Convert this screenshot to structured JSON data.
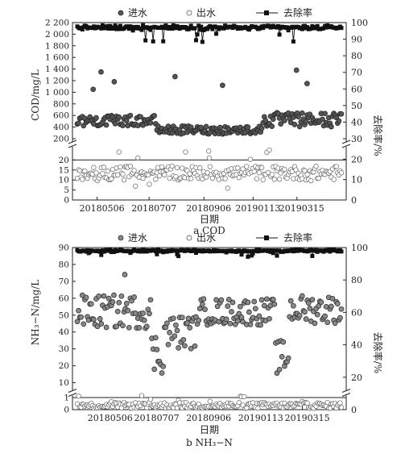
{
  "chart_data": [
    {
      "type": "scatter",
      "caption": "a COD",
      "xlabel": "日期",
      "ylabel_left": "COD/mg/L",
      "ylabel_right": "去除率/%",
      "x_ticks": [
        "20180506",
        "20180707",
        "20180906",
        "20190113",
        "20190315"
      ],
      "y_left_ticks_upper": [
        "200",
        "400",
        "600",
        "800",
        "1 000",
        "1 200",
        "1 400",
        "1 600",
        "1 800",
        "2 000",
        "2 200"
      ],
      "y_left_ticks_lower": [
        "0",
        "5",
        "10",
        "15",
        "20"
      ],
      "y_right_ticks_upper": [
        "40",
        "50",
        "60",
        "70",
        "80",
        "90",
        "100"
      ],
      "y_right_ticks_lower": [
        "0",
        "10",
        "20",
        "30"
      ],
      "ylim_left_upper": [
        200,
        2200
      ],
      "ylim_left_lower": [
        0,
        25
      ],
      "ylim_right_upper": [
        30,
        100
      ],
      "ylim_right_lower": [
        0,
        30
      ],
      "axis_break": true,
      "reference_line": 20,
      "legend_position": "top",
      "series": [
        {
          "name": "进水",
          "marker": "filled-circle",
          "axis": "left",
          "color": "#555555",
          "value_range": [
            200,
            1400
          ],
          "typical": [
            300,
            600
          ],
          "segments": [
            {
              "phase_start": 0.0,
              "phase_end": 0.3,
              "values": [
                420,
                600
              ]
            },
            {
              "phase_start": 0.3,
              "phase_end": 0.7,
              "values": [
                280,
                420
              ]
            },
            {
              "phase_start": 0.7,
              "phase_end": 1.0,
              "values": [
                400,
                650
              ]
            }
          ],
          "outliers": [
            {
              "phase": 0.06,
              "value": 1050
            },
            {
              "phase": 0.09,
              "value": 1350
            },
            {
              "phase": 0.14,
              "value": 1180
            },
            {
              "phase": 0.37,
              "value": 1270
            },
            {
              "phase": 0.55,
              "value": 1120
            },
            {
              "phase": 0.83,
              "value": 1380
            },
            {
              "phase": 0.87,
              "value": 1150
            }
          ]
        },
        {
          "name": "出水",
          "marker": "open-circle",
          "axis": "left",
          "color": "#555555",
          "value_range": [
            5,
            25
          ],
          "typical": [
            10,
            17
          ],
          "outliers": [
            {
              "phase": 0.41,
              "value": 24
            },
            {
              "phase": 0.5,
              "value": 21
            }
          ]
        },
        {
          "name": "去除率",
          "marker": "filled-square-line",
          "axis": "right",
          "color": "#111111",
          "value_range": [
            88,
            99
          ],
          "typical": [
            95,
            99
          ]
        }
      ]
    },
    {
      "type": "scatter",
      "caption": "b NH₃−N",
      "xlabel": "日期",
      "ylabel_left": "NH₃−N/mg/L",
      "ylabel_right": "去除率/%",
      "x_ticks": [
        "20180506",
        "20180707",
        "20180906",
        "20190113",
        "20190315"
      ],
      "y_left_ticks_upper": [
        "10",
        "20",
        "30",
        "40",
        "50",
        "60",
        "70",
        "80",
        "90"
      ],
      "y_left_ticks_lower": [
        "0",
        "1"
      ],
      "y_right_ticks": [
        "0",
        "20",
        "40",
        "60",
        "80",
        "100"
      ],
      "ylim_left_upper": [
        5,
        90
      ],
      "ylim_left_lower": [
        0,
        1.2
      ],
      "ylim_right": [
        0,
        100
      ],
      "axis_break": true,
      "reference_line": 1,
      "legend_position": "top",
      "series": [
        {
          "name": "进水",
          "marker": "filled-circle",
          "axis": "left",
          "color": "#888888",
          "value_range": [
            15,
            74
          ],
          "typical": [
            40,
            60
          ],
          "segments": [
            {
              "phase_start": 0.0,
              "phase_end": 0.28,
              "values": [
                42,
                62
              ]
            },
            {
              "phase_start": 0.28,
              "phase_end": 0.33,
              "values": [
                15,
                40
              ]
            },
            {
              "phase_start": 0.33,
              "phase_end": 0.45,
              "values": [
                30,
                50
              ]
            },
            {
              "phase_start": 0.45,
              "phase_end": 0.75,
              "values": [
                44,
                60
              ]
            },
            {
              "phase_start": 0.75,
              "phase_end": 0.8,
              "values": [
                15,
                35
              ]
            },
            {
              "phase_start": 0.8,
              "phase_end": 1.0,
              "values": [
                45,
                62
              ]
            }
          ],
          "outliers": [
            {
              "phase": 0.18,
              "value": 74
            }
          ]
        },
        {
          "name": "出水",
          "marker": "open-circle",
          "axis": "left",
          "color": "#999999",
          "value_range": [
            0,
            1.2
          ],
          "typical": [
            0.1,
            0.6
          ]
        },
        {
          "name": "去除率",
          "marker": "filled-square-line",
          "axis": "right",
          "color": "#111111",
          "value_range": [
            94,
            100
          ],
          "typical": [
            97,
            99
          ]
        }
      ]
    }
  ]
}
